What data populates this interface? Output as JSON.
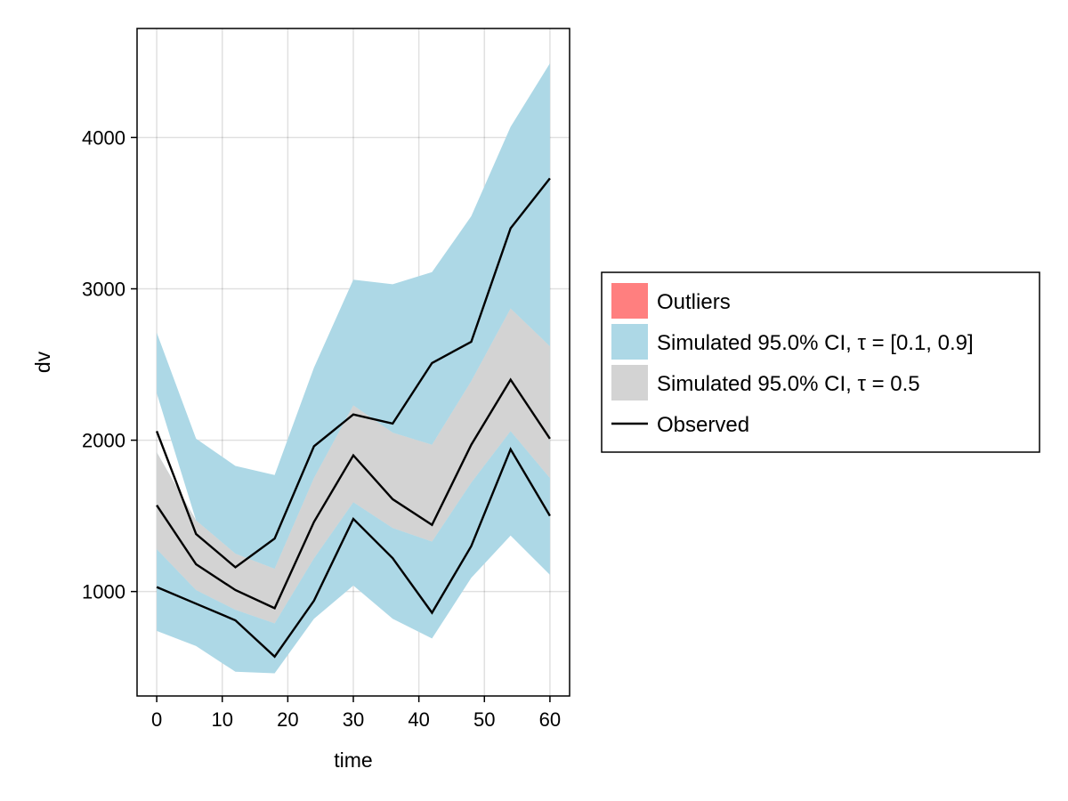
{
  "chart_data": {
    "type": "area",
    "xlabel": "time",
    "ylabel": "dv",
    "xlim": [
      -3,
      63
    ],
    "ylim": [
      310,
      4720
    ],
    "x_ticks": [
      "0",
      "10",
      "20",
      "30",
      "40",
      "50",
      "60"
    ],
    "y_ticks": [
      "1000",
      "2000",
      "3000",
      "4000"
    ],
    "x": [
      0,
      6,
      12,
      18,
      24,
      30,
      36,
      42,
      48,
      54,
      60
    ],
    "bands_outer": [
      {
        "lower": [
          2310,
          1470,
          1250,
          1150,
          1750,
          2230,
          2050,
          1970,
          2390,
          2870,
          2620
        ],
        "upper": [
          2710,
          2010,
          1830,
          1770,
          2480,
          3060,
          3030,
          3110,
          3480,
          4070,
          4490
        ]
      },
      {
        "lower": [
          1280,
          1010,
          880,
          790,
          1220,
          1590,
          1420,
          1330,
          1720,
          2060,
          1750
        ],
        "upper": [
          1920,
          1470,
          1250,
          1150,
          1750,
          2230,
          2050,
          1970,
          2390,
          2870,
          2620
        ]
      },
      {
        "lower": [
          740,
          640,
          470,
          460,
          820,
          1040,
          820,
          690,
          1090,
          1370,
          1110
        ],
        "upper": [
          1280,
          1010,
          880,
          790,
          1220,
          1590,
          1420,
          1330,
          1720,
          2060,
          1750
        ]
      }
    ],
    "band_median": {
      "lower": [
        1280,
        1010,
        880,
        790,
        1220,
        1590,
        1420,
        1330,
        1720,
        2060,
        1750
      ],
      "upper": [
        1920,
        1470,
        1250,
        1150,
        1750,
        2230,
        2050,
        1970,
        2390,
        2870,
        2620
      ]
    },
    "observed": [
      {
        "values": [
          2060,
          1380,
          1160,
          1350,
          1960,
          2170,
          2110,
          2510,
          2650,
          3400,
          3730
        ]
      },
      {
        "values": [
          1570,
          1180,
          1010,
          890,
          1460,
          1900,
          1610,
          1440,
          1970,
          2400,
          2010
        ]
      },
      {
        "values": [
          1030,
          920,
          810,
          570,
          940,
          1480,
          1220,
          860,
          1300,
          1940,
          1500
        ]
      }
    ],
    "legend": {
      "position": "right",
      "items": [
        {
          "label": "Outliers",
          "color": "#ff7f7f",
          "kind": "patch"
        },
        {
          "label": "Simulated 95.0% CI, τ = [0.1, 0.9]",
          "color": "#add8e6",
          "kind": "patch"
        },
        {
          "label": "Simulated 95.0% CI, τ = 0.5",
          "color": "#d3d3d3",
          "kind": "patch"
        },
        {
          "label": "Observed",
          "color": "#000000",
          "kind": "line"
        }
      ]
    },
    "colors": {
      "outer_band": "#add8e6",
      "median_band": "#d3d3d3",
      "observed_line": "#000000"
    },
    "grid": true
  }
}
